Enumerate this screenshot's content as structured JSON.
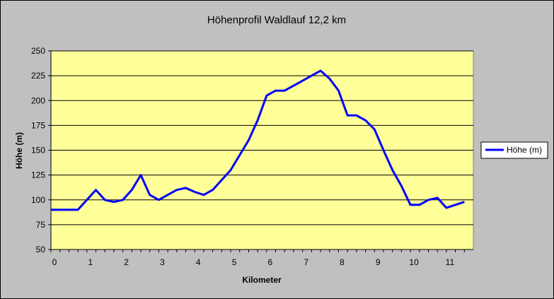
{
  "chart_data": {
    "type": "line",
    "title": "Höhenprofil Waldlauf 12,2 km",
    "xlabel": "Kilometer",
    "ylabel": "Höhe (m)",
    "xlim": [
      0,
      11.75
    ],
    "ylim": [
      50,
      250
    ],
    "x_ticks": [
      "0",
      "1",
      "2",
      "3",
      "4",
      "5",
      "6",
      "7",
      "8",
      "9",
      "10",
      "11"
    ],
    "y_ticks": [
      "50",
      "75",
      "100",
      "125",
      "150",
      "175",
      "200",
      "225",
      "250"
    ],
    "grid": "horizontal",
    "legend_position": "right",
    "plot_background": "#ffff99",
    "line_color": "#0000ff",
    "series": [
      {
        "name": "Höhe (m)",
        "x": [
          0,
          0.25,
          0.5,
          0.75,
          1.0,
          1.25,
          1.5,
          1.75,
          2.0,
          2.25,
          2.5,
          2.75,
          3.0,
          3.25,
          3.5,
          3.75,
          4.0,
          4.25,
          4.5,
          4.75,
          5.0,
          5.25,
          5.5,
          5.75,
          6.0,
          6.25,
          6.5,
          6.75,
          7.0,
          7.25,
          7.5,
          7.75,
          8.0,
          8.25,
          8.5,
          8.75,
          9.0,
          9.25,
          9.5,
          9.75,
          10.0,
          10.25,
          10.5,
          10.75,
          11.0,
          11.25,
          11.5
        ],
        "values": [
          90,
          90,
          90,
          90,
          100,
          110,
          100,
          98,
          100,
          110,
          125,
          105,
          100,
          105,
          110,
          112,
          108,
          105,
          110,
          120,
          130,
          145,
          160,
          180,
          205,
          210,
          210,
          215,
          220,
          225,
          230,
          222,
          210,
          185,
          185,
          180,
          171,
          150,
          130,
          114,
          95,
          95,
          100,
          102,
          92,
          95,
          98
        ]
      }
    ]
  }
}
